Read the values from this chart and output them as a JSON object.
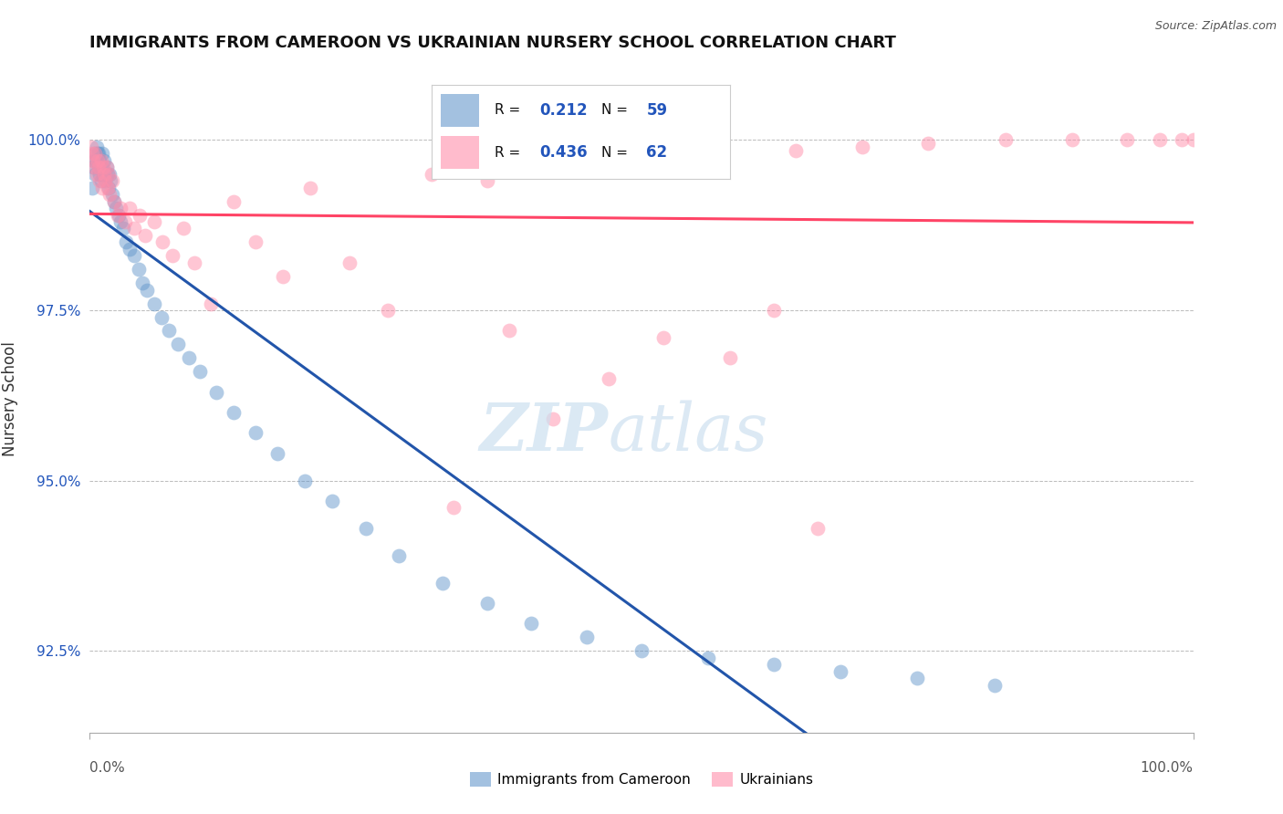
{
  "title": "IMMIGRANTS FROM CAMEROON VS UKRAINIAN NURSERY SCHOOL CORRELATION CHART",
  "source": "Source: ZipAtlas.com",
  "ylabel": "Nursery School",
  "yticks": [
    92.5,
    95.0,
    97.5,
    100.0
  ],
  "ytick_labels": [
    "92.5%",
    "95.0%",
    "97.5%",
    "100.0%"
  ],
  "xlim": [
    0.0,
    1.0
  ],
  "ylim": [
    91.3,
    101.1
  ],
  "legend_blue_R": "0.212",
  "legend_blue_N": "59",
  "legend_pink_R": "0.436",
  "legend_pink_N": "62",
  "legend_label_blue": "Immigrants from Cameroon",
  "legend_label_pink": "Ukrainians",
  "blue_color": "#6699CC",
  "pink_color": "#FF8FAB",
  "blue_line_color": "#2255AA",
  "pink_line_color": "#FF4466",
  "blue_points_x": [
    0.002,
    0.003,
    0.004,
    0.005,
    0.005,
    0.006,
    0.006,
    0.007,
    0.008,
    0.008,
    0.009,
    0.009,
    0.01,
    0.011,
    0.011,
    0.012,
    0.013,
    0.014,
    0.015,
    0.016,
    0.017,
    0.018,
    0.019,
    0.02,
    0.022,
    0.024,
    0.026,
    0.028,
    0.03,
    0.033,
    0.036,
    0.04,
    0.044,
    0.048,
    0.052,
    0.058,
    0.065,
    0.072,
    0.08,
    0.09,
    0.1,
    0.115,
    0.13,
    0.15,
    0.17,
    0.195,
    0.22,
    0.25,
    0.28,
    0.32,
    0.36,
    0.4,
    0.45,
    0.5,
    0.56,
    0.62,
    0.68,
    0.75,
    0.82
  ],
  "blue_points_y": [
    99.3,
    99.6,
    99.7,
    99.8,
    99.5,
    99.7,
    99.9,
    99.8,
    99.6,
    99.8,
    99.5,
    99.7,
    99.4,
    99.6,
    99.8,
    99.5,
    99.7,
    99.4,
    99.6,
    99.5,
    99.3,
    99.5,
    99.4,
    99.2,
    99.1,
    99.0,
    98.9,
    98.8,
    98.7,
    98.5,
    98.4,
    98.3,
    98.1,
    97.9,
    97.8,
    97.6,
    97.4,
    97.2,
    97.0,
    96.8,
    96.6,
    96.3,
    96.0,
    95.7,
    95.4,
    95.0,
    94.7,
    94.3,
    93.9,
    93.5,
    93.2,
    92.9,
    92.7,
    92.5,
    92.4,
    92.3,
    92.2,
    92.1,
    92.0
  ],
  "pink_points_x": [
    0.001,
    0.002,
    0.003,
    0.004,
    0.005,
    0.006,
    0.007,
    0.008,
    0.009,
    0.01,
    0.011,
    0.012,
    0.013,
    0.014,
    0.015,
    0.016,
    0.017,
    0.018,
    0.02,
    0.022,
    0.025,
    0.028,
    0.032,
    0.036,
    0.04,
    0.045,
    0.05,
    0.058,
    0.066,
    0.075,
    0.085,
    0.095,
    0.11,
    0.13,
    0.15,
    0.175,
    0.2,
    0.235,
    0.27,
    0.31,
    0.36,
    0.4,
    0.45,
    0.51,
    0.57,
    0.64,
    0.7,
    0.76,
    0.83,
    0.89,
    0.94,
    0.97,
    0.99,
    1.0,
    0.33,
    0.38,
    0.42,
    0.47,
    0.52,
    0.58,
    0.62,
    0.66
  ],
  "pink_points_y": [
    99.9,
    99.8,
    99.7,
    99.6,
    99.8,
    99.5,
    99.7,
    99.6,
    99.4,
    99.7,
    99.3,
    99.6,
    99.5,
    99.4,
    99.6,
    99.3,
    99.5,
    99.2,
    99.4,
    99.1,
    98.9,
    99.0,
    98.8,
    99.0,
    98.7,
    98.9,
    98.6,
    98.8,
    98.5,
    98.3,
    98.7,
    98.2,
    97.6,
    99.1,
    98.5,
    98.0,
    99.3,
    98.2,
    97.5,
    99.5,
    99.4,
    99.6,
    99.7,
    99.8,
    99.9,
    99.85,
    99.9,
    99.95,
    100.0,
    100.0,
    100.0,
    100.0,
    100.0,
    100.0,
    94.6,
    97.2,
    95.9,
    96.5,
    97.1,
    96.8,
    97.5,
    94.3
  ]
}
